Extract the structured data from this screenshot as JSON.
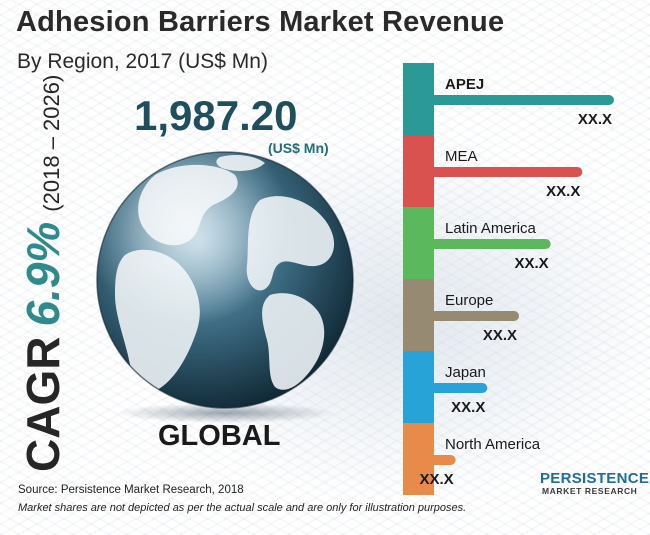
{
  "title": "Adhesion Barriers Market Revenue",
  "subtitle": "By Region, 2017 (US$ Mn)",
  "cagr": {
    "label": "CAGR",
    "value": "6.9%",
    "period": "(2018 – 2026)"
  },
  "global": {
    "value": "1,987.20",
    "unit": "(US$ Mn)",
    "label": "GLOBAL"
  },
  "source": "Source: Persistence Market Research, 2018",
  "note": "Market shares are not depicted as per the actual scale and are only for illustration purposes.",
  "logo": {
    "top": "PERSISTENCE",
    "bottom": "MARKET RESEARCH"
  },
  "colors": {
    "teal": "#2b9a96",
    "red": "#d9524f",
    "green": "#5cb85c",
    "brown": "#978a73",
    "blue": "#27a3d7",
    "orange": "#e78a4a"
  },
  "chart_data": {
    "type": "bar",
    "orientation": "horizontal",
    "categories": [
      "APEJ",
      "MEA",
      "Latin America",
      "Europe",
      "Japan",
      "North America"
    ],
    "values": [
      6,
      5,
      4,
      3,
      2,
      1
    ],
    "value_labels": [
      "XX.X",
      "XX.X",
      "XX.X",
      "XX.X",
      "XX.X",
      "XX.X"
    ],
    "colors": [
      "#2b9a96",
      "#d9524f",
      "#5cb85c",
      "#978a73",
      "#27a3d7",
      "#e78a4a"
    ],
    "title": "Adhesion Barriers Market Revenue",
    "subtitle": "By Region, 2017 (US$ Mn)",
    "grid": false,
    "legend": "none"
  }
}
